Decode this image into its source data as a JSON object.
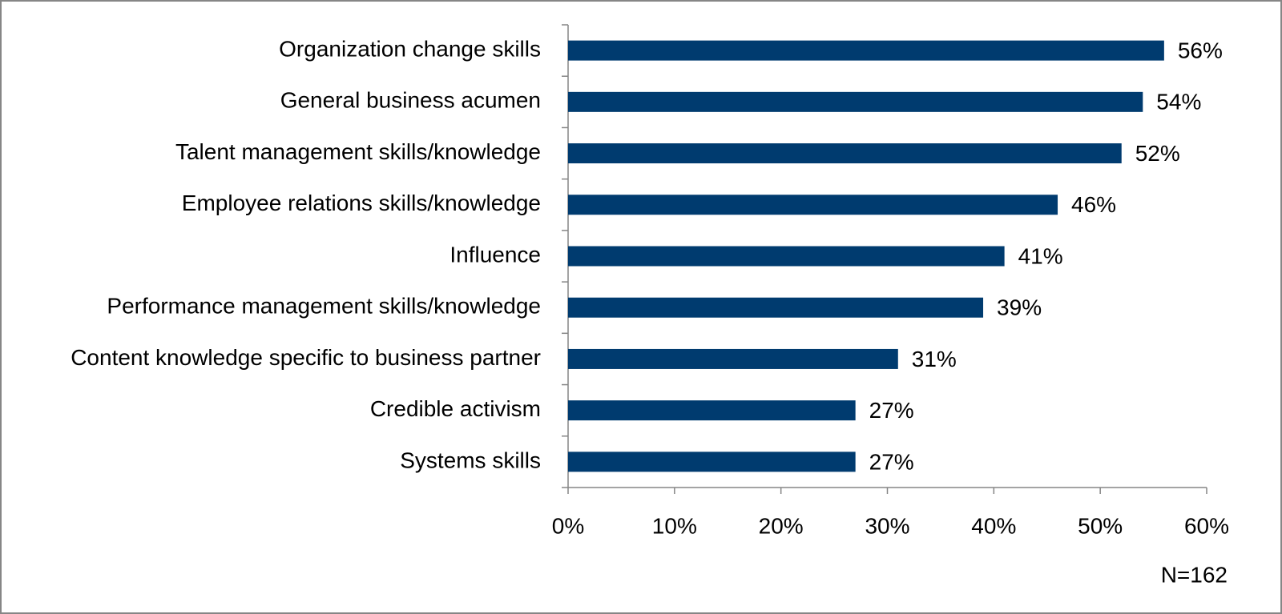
{
  "chart_data": {
    "type": "bar",
    "orientation": "horizontal",
    "categories": [
      "Organization change skills",
      "General business acumen",
      "Talent management skills/knowledge",
      "Employee relations skills/knowledge",
      "Influence",
      "Performance management skills/knowledge",
      "Content knowledge specific to business partner",
      "Credible activism",
      "Systems skills"
    ],
    "values": [
      56,
      54,
      52,
      46,
      41,
      39,
      31,
      27,
      27
    ],
    "value_labels": [
      "56%",
      "54%",
      "52%",
      "46%",
      "41%",
      "39%",
      "31%",
      "27%",
      "27%"
    ],
    "color": "#003b6f",
    "xlim": [
      0,
      60
    ],
    "xticks": [
      {
        "value": 0,
        "label": "0%"
      },
      {
        "value": 10,
        "label": "10%"
      },
      {
        "value": 20,
        "label": "20%"
      },
      {
        "value": 30,
        "label": "30%"
      },
      {
        "value": 40,
        "label": "40%"
      },
      {
        "value": 50,
        "label": "50%"
      },
      {
        "value": 60,
        "label": "60%"
      }
    ],
    "note": "N=162"
  }
}
